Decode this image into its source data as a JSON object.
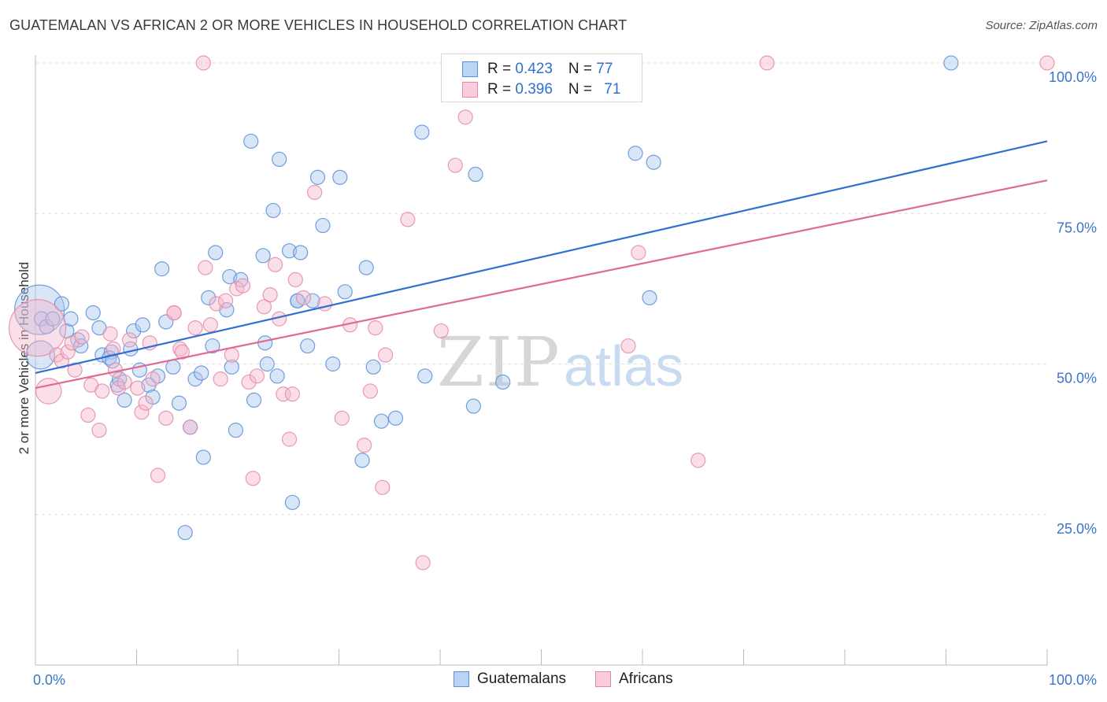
{
  "title": "GUATEMALAN VS AFRICAN 2 OR MORE VEHICLES IN HOUSEHOLD CORRELATION CHART",
  "source": "Source: ZipAtlas.com",
  "watermark": {
    "zip": "ZIP",
    "atlas": "atlas"
  },
  "colors": {
    "blue_fill": "#a9c8f0",
    "blue_stroke": "#5b8fd6",
    "blue_line": "#2f6fd1",
    "pink_fill": "#f6b9cc",
    "pink_stroke": "#e48aa8",
    "pink_line": "#e06a94",
    "tick_label": "#3b74c9",
    "grid": "#dddddd"
  },
  "legend": {
    "items": [
      {
        "r_label": "R = ",
        "r_value": "0.423",
        "n_label": "N = ",
        "n_value": "77"
      },
      {
        "r_label": "R = ",
        "r_value": "0.396",
        "n_label": "N = ",
        "n_value": "71"
      }
    ]
  },
  "chart_data": {
    "type": "scatter",
    "title": "GUATEMALAN VS AFRICAN 2 OR MORE VEHICLES IN HOUSEHOLD CORRELATION CHART",
    "xlabel": "",
    "ylabel": "2 or more Vehicles in Household",
    "xlim": [
      0,
      100
    ],
    "ylim": [
      0,
      103
    ],
    "x_tick_labels": [
      "0.0%",
      "100.0%"
    ],
    "y_ticks": [
      25,
      50,
      75,
      100
    ],
    "y_tick_labels": [
      "25.0%",
      "50.0%",
      "75.0%",
      "100.0%"
    ],
    "grid": true,
    "legend_placement": "top-center and bottom",
    "series": [
      {
        "name": "Guatemalans",
        "color": "#a9c8f0",
        "trend": {
          "x": [
            0,
            100
          ],
          "y": [
            48.5,
            87
          ]
        },
        "points": [
          [
            0.4,
            59,
            3.5
          ],
          [
            0.5,
            51.5,
            2
          ],
          [
            0.6,
            57.5,
            1
          ],
          [
            1.1,
            56.2,
            1
          ],
          [
            1.7,
            57.5,
            1
          ],
          [
            2.6,
            60,
            1
          ],
          [
            3.1,
            55.5,
            1
          ],
          [
            3.5,
            57.5,
            1
          ],
          [
            4.2,
            54,
            1
          ],
          [
            4.5,
            53,
            1
          ],
          [
            5.7,
            58.5,
            1
          ],
          [
            6.3,
            56,
            1
          ],
          [
            6.6,
            51.5,
            1
          ],
          [
            7.5,
            52,
            1
          ],
          [
            7.3,
            51,
            1
          ],
          [
            7.6,
            50.5,
            1
          ],
          [
            8.1,
            46.5,
            1
          ],
          [
            8.3,
            47.5,
            1
          ],
          [
            8.8,
            44,
            1
          ],
          [
            9.4,
            52.5,
            1
          ],
          [
            9.7,
            55.5,
            1
          ],
          [
            10.3,
            49,
            1
          ],
          [
            10.6,
            56.5,
            1
          ],
          [
            11.2,
            46.5,
            1
          ],
          [
            11.6,
            44.5,
            1
          ],
          [
            12.1,
            48,
            1
          ],
          [
            12.5,
            65.8,
            1
          ],
          [
            12.9,
            57,
            1
          ],
          [
            13.6,
            49.5,
            1
          ],
          [
            14.2,
            43.5,
            1
          ],
          [
            14.8,
            22,
            1
          ],
          [
            15.3,
            39.5,
            1
          ],
          [
            15.8,
            47.5,
            1
          ],
          [
            16.4,
            48.5,
            1
          ],
          [
            16.6,
            34.5,
            1
          ],
          [
            17.1,
            61,
            1
          ],
          [
            17.5,
            53,
            1
          ],
          [
            17.8,
            68.5,
            1
          ],
          [
            18.9,
            59,
            1
          ],
          [
            19.2,
            64.5,
            1
          ],
          [
            19.4,
            49.5,
            1
          ],
          [
            19.8,
            39,
            1
          ],
          [
            20.3,
            64,
            1
          ],
          [
            21.3,
            87,
            1
          ],
          [
            21.6,
            44,
            1
          ],
          [
            22.5,
            68,
            1
          ],
          [
            22.7,
            53.5,
            1
          ],
          [
            22.9,
            50,
            1
          ],
          [
            23.5,
            75.5,
            1
          ],
          [
            23.9,
            48,
            1
          ],
          [
            24.1,
            84,
            1
          ],
          [
            25.1,
            68.8,
            1
          ],
          [
            25.4,
            27,
            1
          ],
          [
            25.9,
            60.5,
            1
          ],
          [
            26.2,
            68.5,
            1
          ],
          [
            26.9,
            53,
            1
          ],
          [
            27.4,
            60.5,
            1
          ],
          [
            27.9,
            81,
            1
          ],
          [
            28.4,
            73,
            1
          ],
          [
            29.4,
            50,
            1
          ],
          [
            30.1,
            81,
            1
          ],
          [
            30.6,
            62,
            1
          ],
          [
            32.3,
            34,
            1
          ],
          [
            32.7,
            66,
            1
          ],
          [
            33.4,
            49.5,
            1
          ],
          [
            34.2,
            40.5,
            1
          ],
          [
            35.6,
            41,
            1
          ],
          [
            38.2,
            88.5,
            1
          ],
          [
            38.5,
            48,
            1
          ],
          [
            43.3,
            43,
            1
          ],
          [
            43.5,
            81.5,
            1
          ],
          [
            46.2,
            47,
            1
          ],
          [
            59.3,
            85,
            1
          ],
          [
            60.7,
            61,
            1
          ],
          [
            61.1,
            83.5,
            1
          ],
          [
            90.5,
            100,
            1
          ],
          [
            25.9,
            60.5,
            1
          ]
        ]
      },
      {
        "name": "Africans",
        "color": "#f6b9cc",
        "trend": {
          "x": [
            0,
            100
          ],
          "y": [
            46,
            80.5
          ]
        },
        "points": [
          [
            0.2,
            56,
            4
          ],
          [
            1.3,
            45.5,
            1.8
          ],
          [
            2.1,
            51.5,
            1
          ],
          [
            2.6,
            50.5,
            1
          ],
          [
            3.2,
            52,
            1
          ],
          [
            3.6,
            53.5,
            1
          ],
          [
            3.9,
            49,
            1
          ],
          [
            4.6,
            54.5,
            1
          ],
          [
            5.2,
            41.5,
            1
          ],
          [
            5.5,
            46.5,
            1
          ],
          [
            6.3,
            39,
            1
          ],
          [
            6.6,
            45.5,
            1
          ],
          [
            7.4,
            55,
            1
          ],
          [
            7.7,
            52.5,
            1
          ],
          [
            7.9,
            49,
            1
          ],
          [
            8.2,
            46,
            1
          ],
          [
            8.8,
            47,
            1
          ],
          [
            9.3,
            54,
            1
          ],
          [
            10.1,
            46,
            1
          ],
          [
            10.5,
            42,
            1
          ],
          [
            10.9,
            43.5,
            1
          ],
          [
            11.3,
            53.5,
            1
          ],
          [
            11.6,
            47.5,
            1
          ],
          [
            12.1,
            31.5,
            1
          ],
          [
            12.9,
            41,
            1
          ],
          [
            13.7,
            58.5,
            1
          ],
          [
            14.3,
            52.5,
            1
          ],
          [
            14.5,
            52,
            1
          ],
          [
            15.3,
            39.5,
            1
          ],
          [
            15.8,
            56,
            1
          ],
          [
            16.6,
            100,
            1
          ],
          [
            16.8,
            66,
            1
          ],
          [
            17.3,
            56.5,
            1
          ],
          [
            17.9,
            60,
            1
          ],
          [
            18.3,
            47.5,
            1
          ],
          [
            18.8,
            60.5,
            1
          ],
          [
            19.4,
            51.5,
            1
          ],
          [
            19.9,
            62.5,
            1
          ],
          [
            20.5,
            63,
            1
          ],
          [
            21.1,
            47,
            1
          ],
          [
            21.5,
            31,
            1
          ],
          [
            21.9,
            48,
            1
          ],
          [
            22.6,
            59.5,
            1
          ],
          [
            23.2,
            61.5,
            1
          ],
          [
            23.7,
            66.5,
            1
          ],
          [
            24.1,
            57.5,
            1
          ],
          [
            24.5,
            45,
            1
          ],
          [
            25.1,
            37.5,
            1
          ],
          [
            25.4,
            45,
            1
          ],
          [
            25.7,
            64,
            1
          ],
          [
            26.5,
            61,
            1
          ],
          [
            27.6,
            78.5,
            1
          ],
          [
            28.6,
            60,
            1
          ],
          [
            30.3,
            41,
            1
          ],
          [
            31.1,
            56.5,
            1
          ],
          [
            32.5,
            36.5,
            1
          ],
          [
            33.1,
            45.5,
            1
          ],
          [
            33.6,
            56,
            1
          ],
          [
            34.3,
            29.5,
            1
          ],
          [
            34.6,
            51.5,
            1
          ],
          [
            36.8,
            74,
            1
          ],
          [
            38.3,
            17,
            1
          ],
          [
            40.1,
            55.5,
            1
          ],
          [
            41.5,
            83,
            1
          ],
          [
            42.5,
            91,
            1
          ],
          [
            58.6,
            53,
            1
          ],
          [
            59.6,
            68.5,
            1
          ],
          [
            65.5,
            34,
            1
          ],
          [
            72.3,
            100,
            1
          ],
          [
            100,
            100,
            1
          ],
          [
            13.7,
            58.5,
            1
          ]
        ]
      }
    ]
  },
  "bottom_legend": [
    {
      "label": "Guatemalans"
    },
    {
      "label": "Africans"
    }
  ]
}
